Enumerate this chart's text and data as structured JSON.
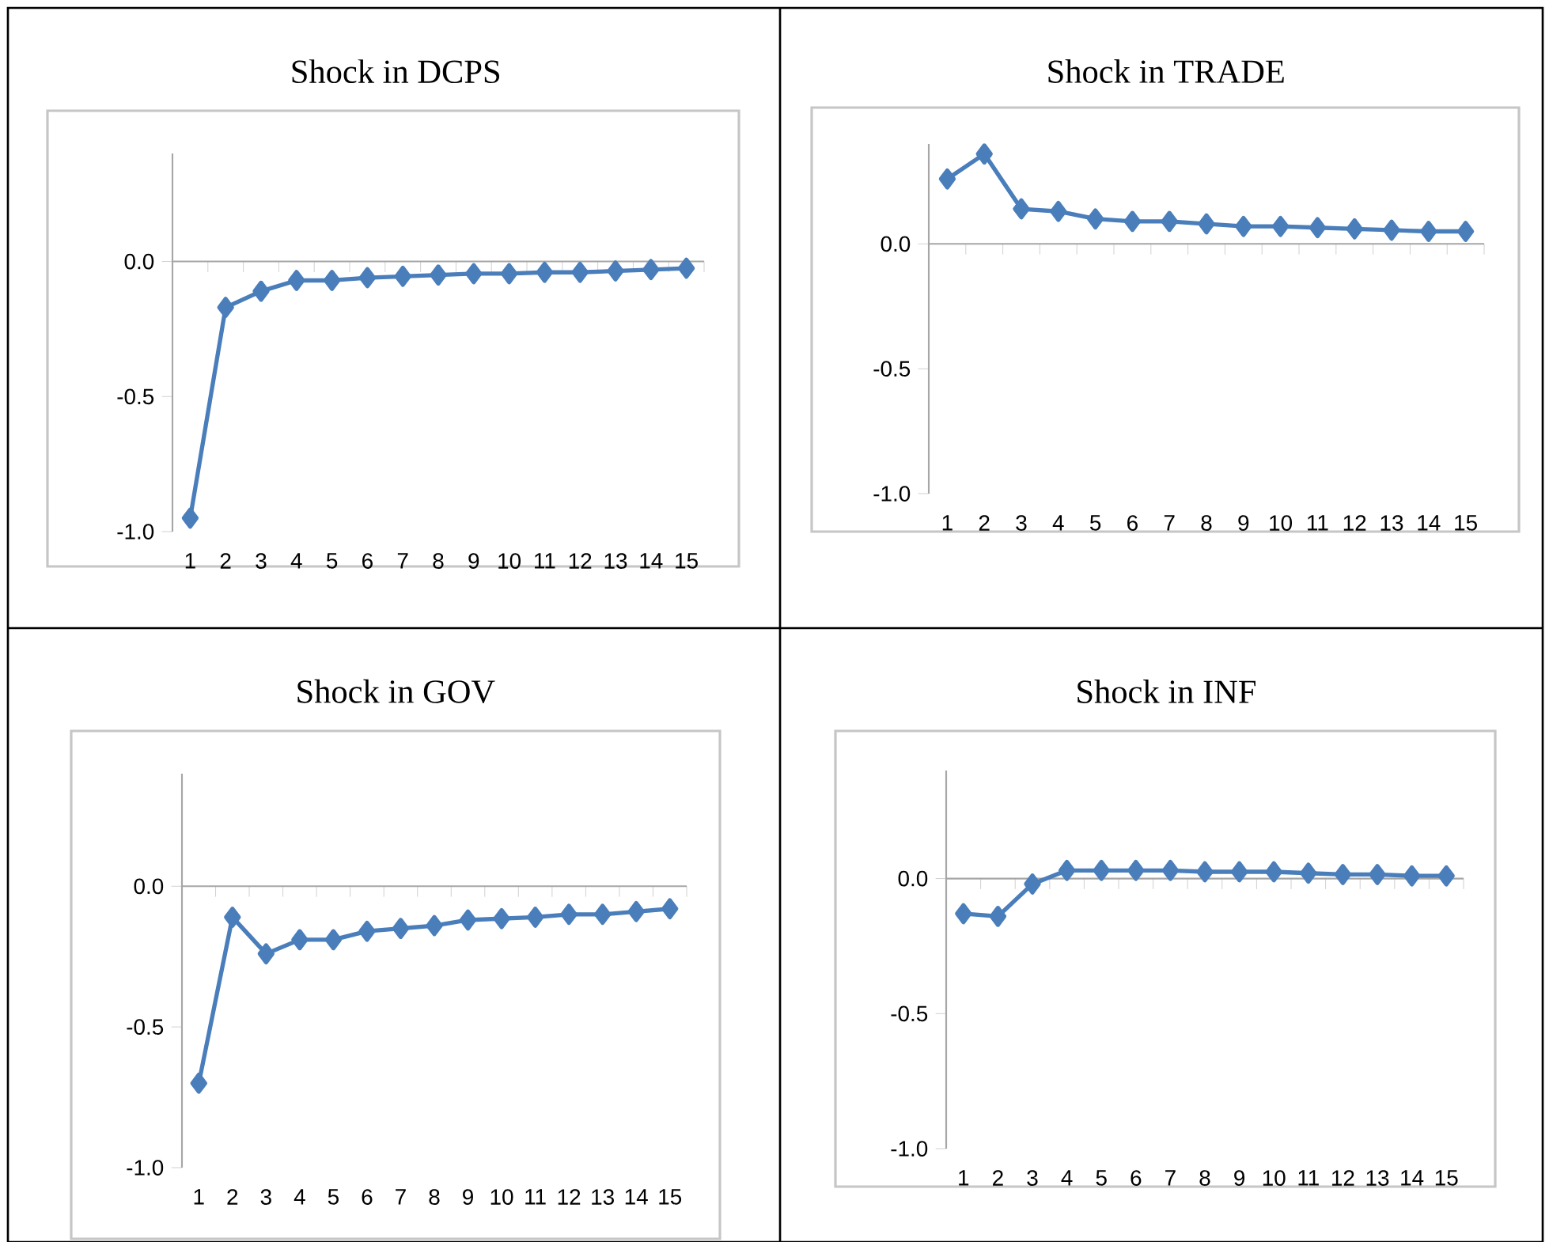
{
  "chart_data": [
    {
      "type": "line",
      "title": "Shock in DCPS",
      "categories": [
        "1",
        "2",
        "3",
        "4",
        "5",
        "6",
        "7",
        "8",
        "9",
        "10",
        "11",
        "12",
        "13",
        "14",
        "15"
      ],
      "series": [
        {
          "color": "#4a7ebb",
          "values": [
            -0.95,
            -0.17,
            -0.11,
            -0.07,
            -0.07,
            -0.06,
            -0.055,
            -0.05,
            -0.045,
            -0.045,
            -0.04,
            -0.04,
            -0.035,
            -0.03,
            -0.025
          ]
        }
      ],
      "ylim": [
        -1.0,
        0.4
      ],
      "yticks": [
        {
          "value": -1.0,
          "label": "-1.0"
        },
        {
          "value": -0.5,
          "label": "-0.5"
        },
        {
          "value": 0.0,
          "label": "0.0"
        }
      ],
      "marker": "diamond",
      "line_style": "solid"
    },
    {
      "type": "line",
      "title": "Shock in TRADE",
      "categories": [
        "1",
        "2",
        "3",
        "4",
        "5",
        "6",
        "7",
        "8",
        "9",
        "10",
        "11",
        "12",
        "13",
        "14",
        "15"
      ],
      "series": [
        {
          "color": "#4a7ebb",
          "values": [
            0.26,
            0.36,
            0.14,
            0.13,
            0.1,
            0.09,
            0.09,
            0.08,
            0.07,
            0.07,
            0.065,
            0.06,
            0.055,
            0.05,
            0.05
          ]
        }
      ],
      "ylim": [
        -1.0,
        0.4
      ],
      "yticks": [
        {
          "value": -1.0,
          "label": "-1.0"
        },
        {
          "value": -0.5,
          "label": "-0.5"
        },
        {
          "value": 0.0,
          "label": "0.0"
        }
      ],
      "marker": "diamond",
      "line_style": "solid"
    },
    {
      "type": "line",
      "title": "Shock in GOV",
      "categories": [
        "1",
        "2",
        "3",
        "4",
        "5",
        "6",
        "7",
        "8",
        "9",
        "10",
        "11",
        "12",
        "13",
        "14",
        "15"
      ],
      "series": [
        {
          "color": "#4a7ebb",
          "values": [
            -0.7,
            -0.11,
            -0.24,
            -0.19,
            -0.19,
            -0.16,
            -0.15,
            -0.14,
            -0.12,
            -0.115,
            -0.11,
            -0.1,
            -0.1,
            -0.09,
            -0.08
          ]
        }
      ],
      "ylim": [
        -1.0,
        0.4
      ],
      "yticks": [
        {
          "value": -1.0,
          "label": "-1.0"
        },
        {
          "value": -0.5,
          "label": "-0.5"
        },
        {
          "value": 0.0,
          "label": "0.0"
        }
      ],
      "marker": "diamond",
      "line_style": "solid"
    },
    {
      "type": "line",
      "title": "Shock in INF",
      "categories": [
        "1",
        "2",
        "3",
        "4",
        "5",
        "6",
        "7",
        "8",
        "9",
        "10",
        "11",
        "12",
        "13",
        "14",
        "15"
      ],
      "series": [
        {
          "color": "#4a7ebb",
          "values": [
            -0.13,
            -0.14,
            -0.02,
            0.03,
            0.03,
            0.03,
            0.03,
            0.025,
            0.025,
            0.025,
            0.02,
            0.015,
            0.015,
            0.01,
            0.01
          ]
        }
      ],
      "ylim": [
        -1.0,
        0.4
      ],
      "yticks": [
        {
          "value": -1.0,
          "label": "-1.0"
        },
        {
          "value": -0.5,
          "label": "-0.5"
        },
        {
          "value": 0.0,
          "label": "0.0"
        }
      ],
      "marker": "diamond",
      "line_style": "solid"
    }
  ]
}
